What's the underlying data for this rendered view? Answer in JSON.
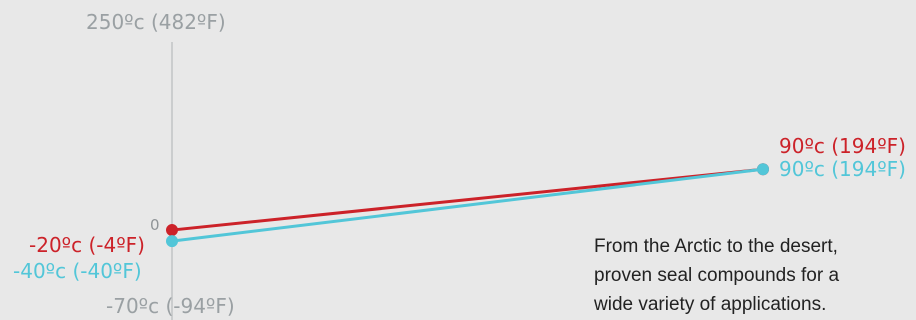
{
  "chart_data": {
    "type": "line",
    "y_axis": {
      "top_label": "250ºc (482ºF)",
      "zero_label": "0",
      "bottom_label": "-70ºc (-94ºF)",
      "ylim": [
        -70,
        250
      ]
    },
    "series": [
      {
        "color": "#cc2229",
        "values": [
          -20,
          90
        ],
        "labels": [
          "-20ºc (-4ºF)",
          "90ºc (194ºF)"
        ]
      },
      {
        "color": "#52c6d8",
        "values": [
          -40,
          90
        ],
        "labels": [
          "-40ºc (-40ºF)",
          "90ºc (194ºF)"
        ]
      }
    ]
  },
  "caption": {
    "line1": "From the Arctic to the desert,",
    "line2": "proven seal compounds for a",
    "line3": "wide variety of applications."
  }
}
